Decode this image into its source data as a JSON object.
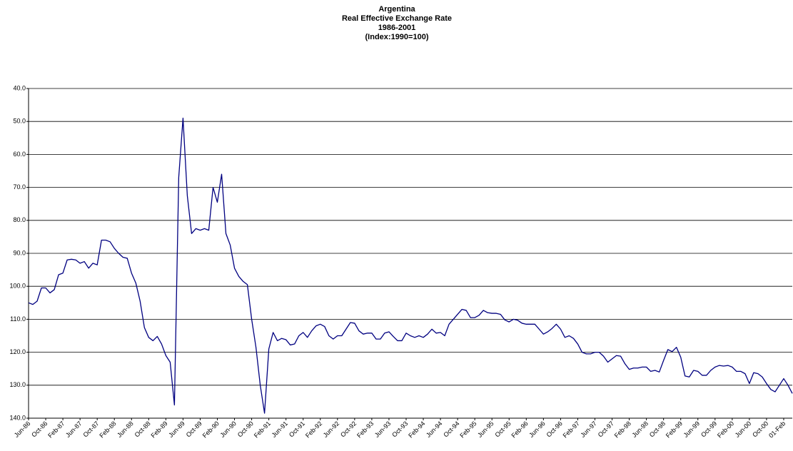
{
  "chart_data": {
    "type": "line",
    "title": [
      "Argentina",
      "Real Effective Exchange Rate",
      "1986-2001",
      "(Index:1990=100)"
    ],
    "categories": [
      "Jun-86",
      null,
      null,
      null,
      "Oct-86",
      null,
      null,
      null,
      "Feb-87",
      null,
      null,
      null,
      "Jun-87",
      null,
      null,
      null,
      "Oct-87",
      null,
      null,
      null,
      "Feb-88",
      null,
      null,
      null,
      "Jun-88",
      null,
      null,
      null,
      "Oct-88",
      null,
      null,
      null,
      "Feb-89",
      null,
      null,
      null,
      "Jun-89",
      null,
      null,
      null,
      "Oct-89",
      null,
      null,
      null,
      "Feb-90",
      null,
      null,
      null,
      "Jun-90",
      null,
      null,
      null,
      "Oct-90",
      null,
      null,
      null,
      "Feb-91",
      null,
      null,
      null,
      "Jun-91",
      null,
      null,
      null,
      "Oct-91",
      null,
      null,
      null,
      "Feb-92",
      null,
      null,
      null,
      "Jun-92",
      null,
      null,
      null,
      "Oct-92",
      null,
      null,
      null,
      "Feb-93",
      null,
      null,
      null,
      "Jun-93",
      null,
      null,
      null,
      "Oct-93",
      null,
      null,
      null,
      "Feb-94",
      null,
      null,
      null,
      "Jun-94",
      null,
      null,
      null,
      "Oct-94",
      null,
      null,
      null,
      "Feb-95",
      null,
      null,
      null,
      "Jun-95",
      null,
      null,
      null,
      "Oct-95",
      null,
      null,
      null,
      "Feb-96",
      null,
      null,
      null,
      "Jun-96",
      null,
      null,
      null,
      "Oct-96",
      null,
      null,
      null,
      "Feb-97",
      null,
      null,
      null,
      "Jun-97",
      null,
      null,
      null,
      "Oct-97",
      null,
      null,
      null,
      "Feb-98",
      null,
      null,
      null,
      "Jun-98",
      null,
      null,
      null,
      "Oct-98",
      null,
      null,
      null,
      "Feb-99",
      null,
      null,
      null,
      "Jun-99",
      null,
      null,
      null,
      "Oct-99",
      null,
      null,
      null,
      "Feb-00",
      null,
      null,
      null,
      "Jun-00",
      null,
      null,
      null,
      "Oct-00",
      null,
      null,
      null,
      "01-Feb",
      null,
      null
    ],
    "series": [
      {
        "color": "#000080",
        "values": [
          105,
          105.5,
          104.5,
          100.5,
          100.5,
          102,
          101,
          96.5,
          96,
          92,
          91.8,
          92,
          93,
          92.5,
          94.5,
          93,
          93.5,
          86,
          86,
          86.5,
          88.5,
          90,
          91.2,
          91.5,
          96,
          99,
          104.5,
          112.5,
          115.5,
          116.5,
          115.2,
          117.5,
          121,
          123,
          136,
          67,
          49,
          72.5,
          84,
          82.5,
          83,
          82.5,
          83,
          70,
          74.5,
          66,
          84,
          87.5,
          94.5,
          97,
          98.5,
          99.5,
          110,
          118.5,
          130,
          138.5,
          119,
          114,
          116.5,
          115.8,
          116.2,
          117.8,
          117.5,
          115,
          114,
          115.5,
          113.5,
          112,
          111.5,
          112.2,
          115,
          116,
          115,
          115,
          113,
          111,
          111.2,
          113.5,
          114.5,
          114.2,
          114.2,
          116,
          116,
          114.2,
          113.8,
          115.2,
          116.5,
          116.5,
          114.2,
          115,
          115.5,
          115,
          115.5,
          114.5,
          113,
          114.2,
          114,
          115,
          111.5,
          110,
          108.5,
          107,
          107.3,
          109.5,
          109.5,
          108.8,
          107.3,
          108,
          108.2,
          108.2,
          108.5,
          110.2,
          110.8,
          110,
          110.3,
          111.2,
          111.5,
          111.5,
          111.5,
          113,
          114.5,
          113.8,
          112.8,
          111.5,
          113,
          115.5,
          115,
          115.8,
          117.5,
          120,
          120.5,
          120.5,
          120,
          120,
          121.2,
          123,
          122,
          121,
          121.2,
          123.5,
          125.2,
          124.8,
          124.8,
          124.5,
          124.5,
          125.8,
          125.5,
          126,
          122.5,
          119.2,
          119.8,
          118.5,
          121.5,
          127.2,
          127.5,
          125.5,
          125.8,
          127,
          127,
          125.5,
          124.5,
          124,
          124.2,
          124,
          124.5,
          125.8,
          125.8,
          126.5,
          129.5,
          126.2,
          126.5,
          127.5,
          129.5,
          131.3,
          132,
          130,
          128,
          130,
          132.5
        ]
      }
    ],
    "ylim": [
      140,
      40
    ],
    "yticks": [
      {
        "value": 40,
        "label": "40.0"
      },
      {
        "value": 50,
        "label": "50.0"
      },
      {
        "value": 60,
        "label": "60.0"
      },
      {
        "value": 70,
        "label": "70.0"
      },
      {
        "value": 80,
        "label": "80.0"
      },
      {
        "value": 90,
        "label": "90.0"
      },
      {
        "value": 100,
        "label": "100.0"
      },
      {
        "value": 110,
        "label": "110.0"
      },
      {
        "value": 120,
        "label": "120.0"
      },
      {
        "value": 130,
        "label": "130.0"
      },
      {
        "value": 140,
        "label": "140.0"
      }
    ],
    "grid": true
  }
}
